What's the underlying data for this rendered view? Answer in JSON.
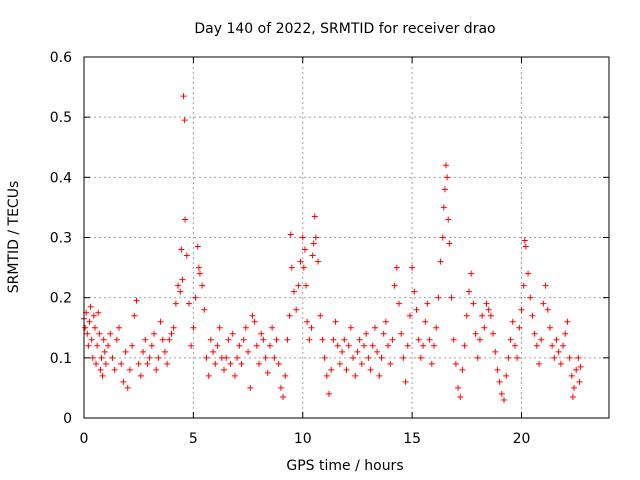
{
  "chart_data": {
    "type": "scatter",
    "title": "Day 140 of 2022, SRMTID for receiver drao",
    "xlabel": "GPS time / hours",
    "ylabel": "SRMTID / TECUs",
    "xlim": [
      0,
      24
    ],
    "ylim": [
      0,
      0.6
    ],
    "x_ticks": [
      0,
      5,
      10,
      15,
      20
    ],
    "y_ticks": [
      0,
      0.1,
      0.2,
      0.3,
      0.4,
      0.5,
      0.6
    ],
    "x_tick_labels": [
      "0",
      "5",
      "10",
      "15",
      "20"
    ],
    "y_tick_labels": [
      "0",
      "0.1",
      "0.2",
      "0.3",
      "0.4",
      "0.5",
      "0.6"
    ],
    "grid": true,
    "marker": "plus",
    "marker_color": "#ff0000",
    "series": [
      {
        "name": "SRMTID",
        "points": [
          [
            0.0,
            0.165
          ],
          [
            0.05,
            0.15
          ],
          [
            0.1,
            0.175
          ],
          [
            0.15,
            0.14
          ],
          [
            0.2,
            0.12
          ],
          [
            0.25,
            0.16
          ],
          [
            0.3,
            0.185
          ],
          [
            0.35,
            0.13
          ],
          [
            0.4,
            0.1
          ],
          [
            0.45,
            0.17
          ],
          [
            0.5,
            0.15
          ],
          [
            0.55,
            0.09
          ],
          [
            0.6,
            0.12
          ],
          [
            0.65,
            0.175
          ],
          [
            0.7,
            0.14
          ],
          [
            0.75,
            0.08
          ],
          [
            0.8,
            0.1
          ],
          [
            0.85,
            0.07
          ],
          [
            0.9,
            0.13
          ],
          [
            0.95,
            0.11
          ],
          [
            1.0,
            0.09
          ],
          [
            1.1,
            0.12
          ],
          [
            1.2,
            0.14
          ],
          [
            1.3,
            0.1
          ],
          [
            1.4,
            0.08
          ],
          [
            1.5,
            0.13
          ],
          [
            1.6,
            0.15
          ],
          [
            1.7,
            0.09
          ],
          [
            1.8,
            0.06
          ],
          [
            1.9,
            0.11
          ],
          [
            2.0,
            0.05
          ],
          [
            2.1,
            0.08
          ],
          [
            2.2,
            0.12
          ],
          [
            2.3,
            0.17
          ],
          [
            2.4,
            0.195
          ],
          [
            2.5,
            0.09
          ],
          [
            2.6,
            0.07
          ],
          [
            2.7,
            0.11
          ],
          [
            2.8,
            0.13
          ],
          [
            2.9,
            0.09
          ],
          [
            3.0,
            0.1
          ],
          [
            3.1,
            0.12
          ],
          [
            3.2,
            0.14
          ],
          [
            3.3,
            0.08
          ],
          [
            3.4,
            0.1
          ],
          [
            3.5,
            0.16
          ],
          [
            3.6,
            0.13
          ],
          [
            3.7,
            0.11
          ],
          [
            3.8,
            0.09
          ],
          [
            3.9,
            0.13
          ],
          [
            4.0,
            0.14
          ],
          [
            4.1,
            0.15
          ],
          [
            4.2,
            0.19
          ],
          [
            4.3,
            0.22
          ],
          [
            4.4,
            0.21
          ],
          [
            4.45,
            0.28
          ],
          [
            4.5,
            0.23
          ],
          [
            4.55,
            0.535
          ],
          [
            4.6,
            0.495
          ],
          [
            4.62,
            0.33
          ],
          [
            4.7,
            0.27
          ],
          [
            4.8,
            0.19
          ],
          [
            4.9,
            0.12
          ],
          [
            5.0,
            0.15
          ],
          [
            5.1,
            0.2
          ],
          [
            5.2,
            0.285
          ],
          [
            5.25,
            0.25
          ],
          [
            5.3,
            0.24
          ],
          [
            5.4,
            0.22
          ],
          [
            5.5,
            0.18
          ],
          [
            5.6,
            0.1
          ],
          [
            5.7,
            0.07
          ],
          [
            5.8,
            0.13
          ],
          [
            5.9,
            0.11
          ],
          [
            6.0,
            0.09
          ],
          [
            6.1,
            0.12
          ],
          [
            6.2,
            0.15
          ],
          [
            6.3,
            0.1
          ],
          [
            6.4,
            0.08
          ],
          [
            6.5,
            0.1
          ],
          [
            6.6,
            0.13
          ],
          [
            6.7,
            0.09
          ],
          [
            6.8,
            0.14
          ],
          [
            6.9,
            0.07
          ],
          [
            7.0,
            0.1
          ],
          [
            7.1,
            0.12
          ],
          [
            7.2,
            0.09
          ],
          [
            7.3,
            0.13
          ],
          [
            7.4,
            0.15
          ],
          [
            7.5,
            0.11
          ],
          [
            7.6,
            0.05
          ],
          [
            7.7,
            0.17
          ],
          [
            7.8,
            0.16
          ],
          [
            7.9,
            0.12
          ],
          [
            8.0,
            0.09
          ],
          [
            8.1,
            0.14
          ],
          [
            8.2,
            0.13
          ],
          [
            8.3,
            0.1
          ],
          [
            8.4,
            0.075
          ],
          [
            8.5,
            0.12
          ],
          [
            8.6,
            0.15
          ],
          [
            8.7,
            0.1
          ],
          [
            8.8,
            0.13
          ],
          [
            8.9,
            0.09
          ],
          [
            9.0,
            0.05
          ],
          [
            9.1,
            0.035
          ],
          [
            9.2,
            0.07
          ],
          [
            9.3,
            0.13
          ],
          [
            9.4,
            0.17
          ],
          [
            9.45,
            0.305
          ],
          [
            9.5,
            0.25
          ],
          [
            9.6,
            0.21
          ],
          [
            9.7,
            0.18
          ],
          [
            9.8,
            0.22
          ],
          [
            9.9,
            0.26
          ],
          [
            10.0,
            0.3
          ],
          [
            10.05,
            0.25
          ],
          [
            10.1,
            0.28
          ],
          [
            10.15,
            0.22
          ],
          [
            10.2,
            0.16
          ],
          [
            10.3,
            0.13
          ],
          [
            10.4,
            0.15
          ],
          [
            10.45,
            0.27
          ],
          [
            10.5,
            0.29
          ],
          [
            10.55,
            0.335
          ],
          [
            10.6,
            0.3
          ],
          [
            10.7,
            0.26
          ],
          [
            10.8,
            0.17
          ],
          [
            10.9,
            0.13
          ],
          [
            11.0,
            0.1
          ],
          [
            11.1,
            0.07
          ],
          [
            11.2,
            0.04
          ],
          [
            11.3,
            0.08
          ],
          [
            11.4,
            0.13
          ],
          [
            11.5,
            0.16
          ],
          [
            11.6,
            0.12
          ],
          [
            11.7,
            0.09
          ],
          [
            11.8,
            0.11
          ],
          [
            11.9,
            0.13
          ],
          [
            12.0,
            0.08
          ],
          [
            12.1,
            0.12
          ],
          [
            12.2,
            0.15
          ],
          [
            12.3,
            0.1
          ],
          [
            12.4,
            0.07
          ],
          [
            12.5,
            0.11
          ],
          [
            12.6,
            0.13
          ],
          [
            12.7,
            0.09
          ],
          [
            12.8,
            0.12
          ],
          [
            12.9,
            0.14
          ],
          [
            13.0,
            0.1
          ],
          [
            13.1,
            0.08
          ],
          [
            13.2,
            0.12
          ],
          [
            13.3,
            0.15
          ],
          [
            13.4,
            0.11
          ],
          [
            13.5,
            0.07
          ],
          [
            13.6,
            0.1
          ],
          [
            13.7,
            0.14
          ],
          [
            13.8,
            0.16
          ],
          [
            13.9,
            0.12
          ],
          [
            14.0,
            0.09
          ],
          [
            14.1,
            0.13
          ],
          [
            14.2,
            0.22
          ],
          [
            14.3,
            0.25
          ],
          [
            14.4,
            0.19
          ],
          [
            14.5,
            0.14
          ],
          [
            14.6,
            0.1
          ],
          [
            14.7,
            0.06
          ],
          [
            14.8,
            0.12
          ],
          [
            14.9,
            0.17
          ],
          [
            15.0,
            0.25
          ],
          [
            15.1,
            0.21
          ],
          [
            15.2,
            0.18
          ],
          [
            15.3,
            0.13
          ],
          [
            15.4,
            0.1
          ],
          [
            15.5,
            0.12
          ],
          [
            15.6,
            0.16
          ],
          [
            15.7,
            0.19
          ],
          [
            15.8,
            0.13
          ],
          [
            15.9,
            0.09
          ],
          [
            16.0,
            0.12
          ],
          [
            16.1,
            0.15
          ],
          [
            16.2,
            0.2
          ],
          [
            16.3,
            0.26
          ],
          [
            16.4,
            0.3
          ],
          [
            16.45,
            0.35
          ],
          [
            16.5,
            0.38
          ],
          [
            16.55,
            0.42
          ],
          [
            16.6,
            0.4
          ],
          [
            16.65,
            0.33
          ],
          [
            16.7,
            0.29
          ],
          [
            16.8,
            0.2
          ],
          [
            16.9,
            0.13
          ],
          [
            17.0,
            0.09
          ],
          [
            17.1,
            0.05
          ],
          [
            17.2,
            0.035
          ],
          [
            17.3,
            0.08
          ],
          [
            17.4,
            0.12
          ],
          [
            17.5,
            0.17
          ],
          [
            17.6,
            0.21
          ],
          [
            17.7,
            0.24
          ],
          [
            17.8,
            0.19
          ],
          [
            17.9,
            0.14
          ],
          [
            18.0,
            0.1
          ],
          [
            18.1,
            0.13
          ],
          [
            18.2,
            0.17
          ],
          [
            18.3,
            0.15
          ],
          [
            18.4,
            0.19
          ],
          [
            18.5,
            0.18
          ],
          [
            18.6,
            0.17
          ],
          [
            18.7,
            0.14
          ],
          [
            18.8,
            0.11
          ],
          [
            18.9,
            0.08
          ],
          [
            19.0,
            0.06
          ],
          [
            19.1,
            0.04
          ],
          [
            19.2,
            0.03
          ],
          [
            19.3,
            0.07
          ],
          [
            19.4,
            0.1
          ],
          [
            19.5,
            0.13
          ],
          [
            19.6,
            0.16
          ],
          [
            19.7,
            0.12
          ],
          [
            19.8,
            0.1
          ],
          [
            19.9,
            0.15
          ],
          [
            20.0,
            0.18
          ],
          [
            20.1,
            0.22
          ],
          [
            20.15,
            0.295
          ],
          [
            20.2,
            0.285
          ],
          [
            20.3,
            0.24
          ],
          [
            20.4,
            0.2
          ],
          [
            20.5,
            0.17
          ],
          [
            20.6,
            0.14
          ],
          [
            20.7,
            0.12
          ],
          [
            20.8,
            0.09
          ],
          [
            20.9,
            0.13
          ],
          [
            21.0,
            0.19
          ],
          [
            21.1,
            0.22
          ],
          [
            21.2,
            0.18
          ],
          [
            21.3,
            0.15
          ],
          [
            21.4,
            0.12
          ],
          [
            21.5,
            0.1
          ],
          [
            21.6,
            0.13
          ],
          [
            21.7,
            0.11
          ],
          [
            21.8,
            0.09
          ],
          [
            21.9,
            0.12
          ],
          [
            22.0,
            0.14
          ],
          [
            22.1,
            0.16
          ],
          [
            22.2,
            0.1
          ],
          [
            22.3,
            0.07
          ],
          [
            22.35,
            0.035
          ],
          [
            22.4,
            0.05
          ],
          [
            22.5,
            0.08
          ],
          [
            22.6,
            0.1
          ],
          [
            22.65,
            0.06
          ],
          [
            22.7,
            0.085
          ]
        ]
      }
    ]
  }
}
